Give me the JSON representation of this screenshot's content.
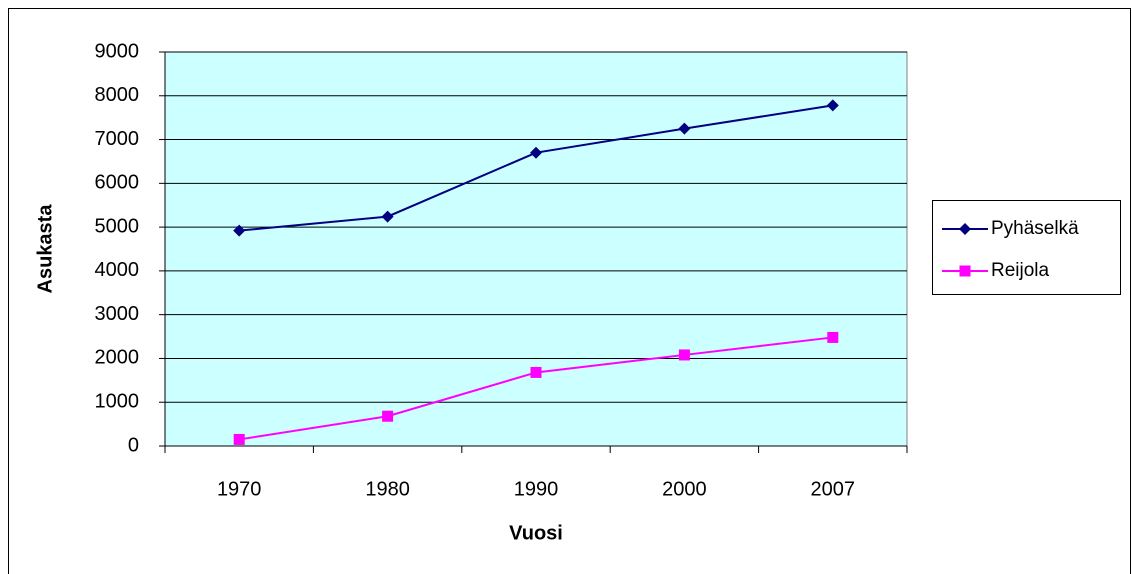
{
  "chart_data": {
    "type": "line",
    "x_label": "Vuosi",
    "y_label": "Asukasta",
    "categories": [
      "1970",
      "1980",
      "1990",
      "2000",
      "2007"
    ],
    "series": [
      {
        "name": "Pyhäselkä",
        "color": "#000080",
        "marker": "diamond",
        "values": [
          4920,
          5240,
          6700,
          7250,
          7780
        ]
      },
      {
        "name": "Reijola",
        "color": "#ff00ff",
        "marker": "square",
        "values": [
          150,
          680,
          1680,
          2080,
          2480
        ]
      }
    ],
    "ylim": [
      0,
      9000
    ],
    "yticks": [
      0,
      1000,
      2000,
      3000,
      4000,
      5000,
      6000,
      7000,
      8000,
      9000
    ],
    "grid": true,
    "legend": "right",
    "plot_background": "#ccffff"
  }
}
